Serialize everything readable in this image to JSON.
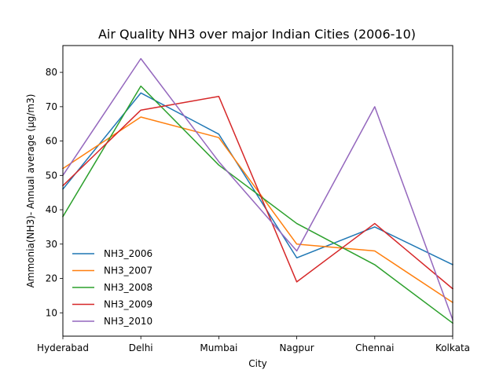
{
  "chart_data": {
    "type": "line",
    "title": "Air Quality NH3 over major Indian Cities (2006-10)",
    "xlabel": "City",
    "ylabel": "Ammonia(NH3)-  Annual average (µg/m3)",
    "categories": [
      "Hyderabad",
      "Delhi",
      "Mumbai",
      "Nagpur",
      "Chennai",
      "Kolkata"
    ],
    "yticks": [
      10,
      20,
      30,
      40,
      50,
      60,
      70,
      80
    ],
    "ylim": [
      3.2,
      87.8
    ],
    "grid": false,
    "legend_position": "lower-left",
    "series": [
      {
        "name": "NH3_2006",
        "color": "#1f77b4",
        "values": [
          46,
          74,
          62,
          26,
          35,
          24
        ]
      },
      {
        "name": "NH3_2007",
        "color": "#ff7f0e",
        "values": [
          52,
          67,
          61,
          30,
          28,
          13
        ]
      },
      {
        "name": "NH3_2008",
        "color": "#2ca02c",
        "values": [
          38,
          76,
          53,
          36,
          24,
          7
        ]
      },
      {
        "name": "NH3_2009",
        "color": "#d62728",
        "values": [
          47,
          69,
          73,
          19,
          36,
          17
        ]
      },
      {
        "name": "NH3_2010",
        "color": "#9467bd",
        "values": [
          50,
          84,
          54,
          28,
          70,
          8
        ]
      }
    ]
  }
}
